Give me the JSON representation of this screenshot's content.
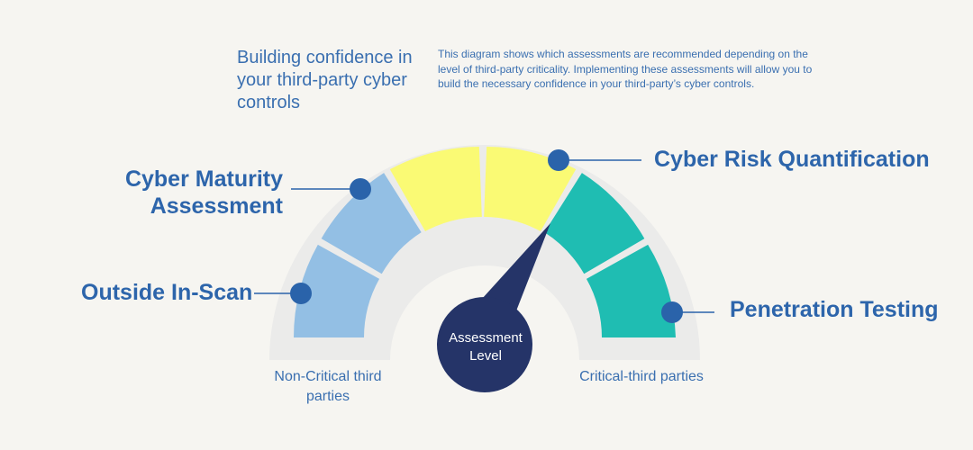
{
  "header": {
    "title": "Building confidence in your third-party cyber controls",
    "description": "This diagram shows which assessments are recommended depending on the level of third-party criticality. Implementing these assessments will allow you to build the necessary confidence in your third-party’s cyber controls."
  },
  "gauge": {
    "center_label": "Assessment Level",
    "left_end_label": "Non-Critical third parties",
    "right_end_label": "Critical-third parties",
    "colors": {
      "track": "#ebebea",
      "light_blue": "#93bfe4",
      "yellow": "#fafa74",
      "teal": "#1fbdb2",
      "navy": "#253468",
      "marker": "#2a63aa"
    }
  },
  "assessments": [
    {
      "label": "Outside In-Scan"
    },
    {
      "label": "Cyber Maturity Assessment"
    },
    {
      "label": "Cyber Risk Quantification"
    },
    {
      "label": "Penetration Testing"
    }
  ]
}
